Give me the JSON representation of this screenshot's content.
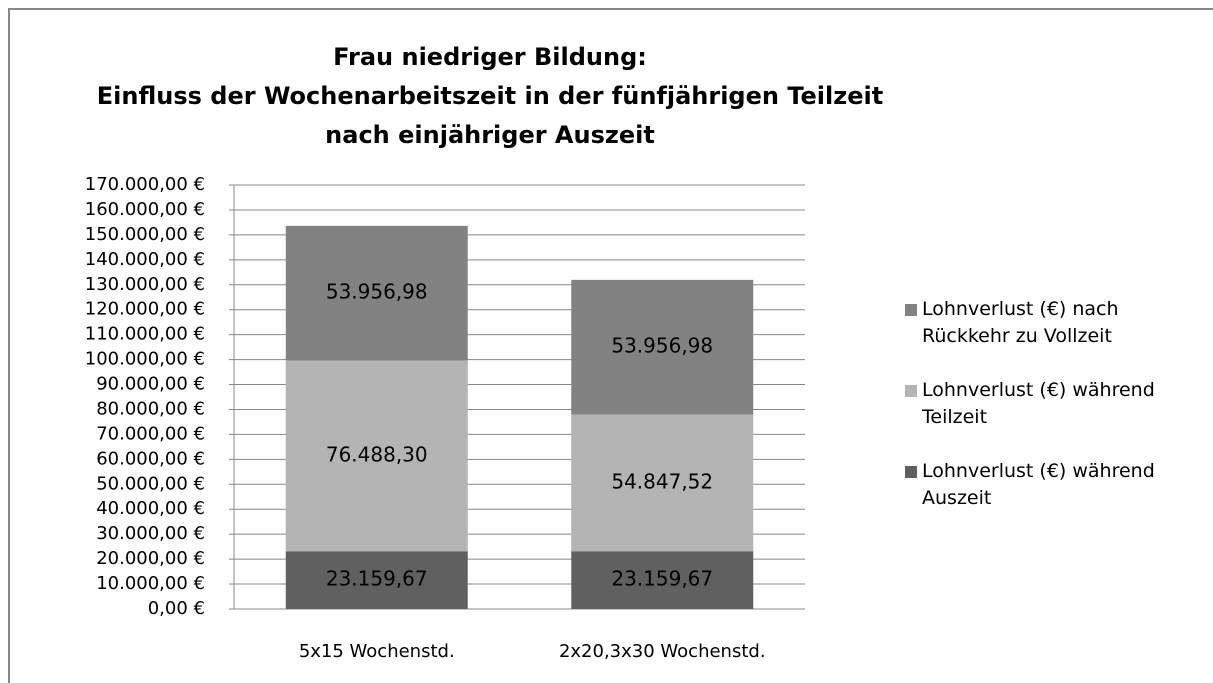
{
  "chart_data": {
    "type": "stacked_bar",
    "title": [
      "Frau niedriger Bildung:",
      "Einfluss der Wochenarbeitszeit in der fünfjährigen Teilzeit",
      "nach einjähriger Auszeit"
    ],
    "categories": [
      "5x15 Wochenstd.",
      "2x20,3x30 Wochenstd."
    ],
    "series": [
      {
        "name": "Lohnverlust (€) während Auszeit",
        "color": "#606060",
        "values": [
          23159.67,
          23159.67
        ],
        "value_labels": [
          "23.159,67",
          "23.159,67"
        ]
      },
      {
        "name": "Lohnverlust (€) während Teilzeit",
        "color": "#b4b4b4",
        "values": [
          76488.3,
          54847.52
        ],
        "value_labels": [
          "76.488,30",
          "54.847,52"
        ]
      },
      {
        "name": "Lohnverlust (€) nach Rückkehr zu Vollzeit",
        "color": "#828282",
        "values": [
          53956.98,
          53956.98
        ],
        "value_labels": [
          "53.956,98",
          "53.956,98"
        ]
      }
    ],
    "ylim": [
      0,
      170000
    ],
    "yticks": [
      {
        "value": 0,
        "label": "0,00 €"
      },
      {
        "value": 10000,
        "label": "10.000,00 €"
      },
      {
        "value": 20000,
        "label": "20.000,00 €"
      },
      {
        "value": 30000,
        "label": "30.000,00 €"
      },
      {
        "value": 40000,
        "label": "40.000,00 €"
      },
      {
        "value": 50000,
        "label": "50.000,00 €"
      },
      {
        "value": 60000,
        "label": "60.000,00 €"
      },
      {
        "value": 70000,
        "label": "70.000,00 €"
      },
      {
        "value": 80000,
        "label": "80.000,00 €"
      },
      {
        "value": 90000,
        "label": "90.000,00 €"
      },
      {
        "value": 100000,
        "label": "100.000,00 €"
      },
      {
        "value": 110000,
        "label": "110.000,00 €"
      },
      {
        "value": 120000,
        "label": "120.000,00 €"
      },
      {
        "value": 130000,
        "label": "130.000,00 €"
      },
      {
        "value": 140000,
        "label": "140.000,00 €"
      },
      {
        "value": 150000,
        "label": "150.000,00 €"
      },
      {
        "value": 160000,
        "label": "160.000,00 €"
      },
      {
        "value": 170000,
        "label": "170.000,00 €"
      }
    ],
    "grid": true,
    "legend": "right"
  }
}
